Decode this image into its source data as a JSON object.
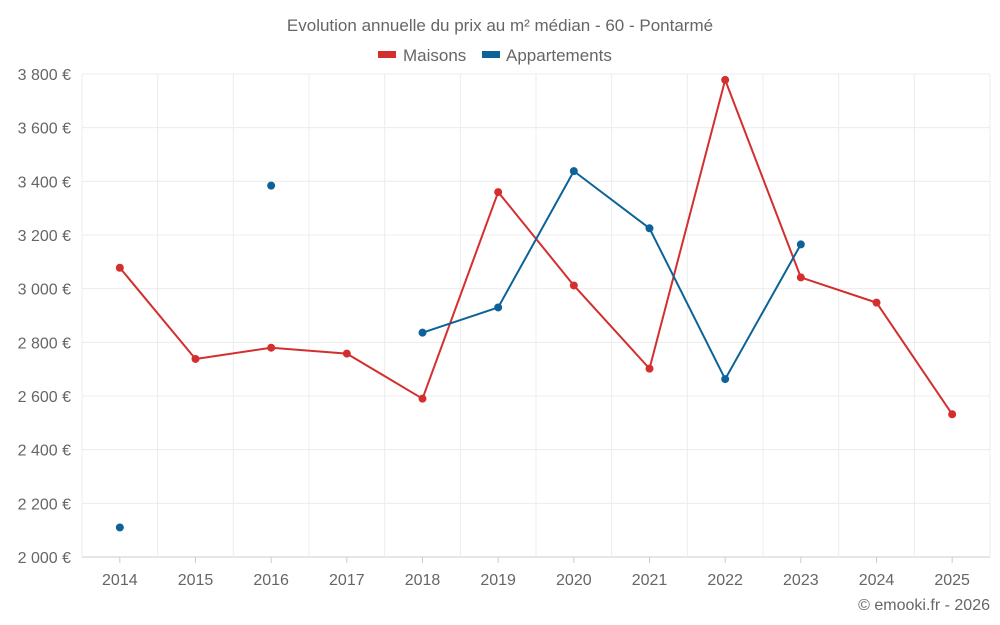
{
  "chart_data": {
    "type": "line",
    "title": "Evolution annuelle du prix au m² médian - 60 - Pontarmé",
    "categories": [
      "2014",
      "2015",
      "2016",
      "2017",
      "2018",
      "2019",
      "2020",
      "2021",
      "2022",
      "2023",
      "2024",
      "2025"
    ],
    "yticks": [
      "2 000 €",
      "2 200 €",
      "2 400 €",
      "2 600 €",
      "2 800 €",
      "3 000 €",
      "3 200 €",
      "3 400 €",
      "3 600 €",
      "3 800 €"
    ],
    "ylim": [
      2000,
      3800
    ],
    "grid": true,
    "legend_position": "top-center",
    "series": [
      {
        "name": "Maisons",
        "color": "#d32f2f",
        "values": [
          3078,
          2738,
          2780,
          2758,
          2590,
          3360,
          3012,
          2702,
          3778,
          3042,
          2948,
          2532
        ]
      },
      {
        "name": "Appartements",
        "color": "#0d6298",
        "values": [
          2110,
          null,
          3384,
          null,
          2836,
          2930,
          3438,
          3225,
          2663,
          3165,
          null,
          null
        ]
      }
    ],
    "credit": "© emooki.fr - 2026"
  }
}
